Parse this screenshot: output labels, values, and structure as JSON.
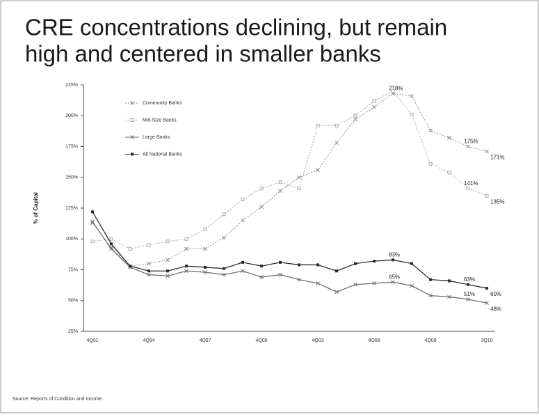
{
  "chart_data": {
    "type": "line",
    "title": "CRE concentrations declining, but remain high and centered in smaller banks",
    "y_label": "% of Capital",
    "source": "Source: Reports of Condition and Income.",
    "categories": [
      "4Q91",
      null,
      null,
      "4Q94",
      null,
      null,
      "4Q97",
      null,
      null,
      "4Q00",
      null,
      null,
      "4Q03",
      null,
      null,
      "4Q06",
      null,
      null,
      "4Q09",
      null,
      null,
      "3Q10"
    ],
    "ylim": [
      25,
      225
    ],
    "yticks": [
      {
        "value": 25,
        "label": "25%"
      },
      {
        "value": 50,
        "label": "50%"
      },
      {
        "value": 75,
        "label": "75%"
      },
      {
        "value": 100,
        "label": "100%"
      },
      {
        "value": 125,
        "label": "125%"
      },
      {
        "value": 150,
        "label": "150%"
      },
      {
        "value": 175,
        "label": "175%"
      },
      {
        "value": 200,
        "label": "200%"
      },
      {
        "value": 225,
        "label": "225%"
      }
    ],
    "grid": false,
    "series": [
      {
        "name": "Community Banks",
        "color": "#8a8a8a",
        "dash": true,
        "marker": "x",
        "values": [
          113,
          93,
          78,
          80,
          83,
          92,
          92,
          101,
          115,
          126,
          139,
          150,
          156,
          178,
          197,
          207,
          218,
          216,
          188,
          182,
          175,
          171
        ],
        "value_labels": [
          null,
          null,
          null,
          null,
          null,
          null,
          null,
          null,
          null,
          null,
          null,
          null,
          null,
          null,
          null,
          null,
          "218%",
          null,
          null,
          null,
          "175%",
          "171%"
        ]
      },
      {
        "name": "Mid-Size Banks",
        "color": "#a8a8a8",
        "dash": true,
        "marker": "square-open",
        "values": [
          98,
          100,
          92,
          95,
          98,
          100,
          108,
          120,
          132,
          141,
          146,
          141,
          192,
          192,
          200,
          212,
          220,
          201,
          161,
          154,
          141,
          135
        ],
        "value_labels": [
          null,
          null,
          null,
          null,
          null,
          null,
          null,
          null,
          null,
          null,
          null,
          null,
          null,
          null,
          null,
          null,
          null,
          null,
          null,
          null,
          "141%",
          "135%"
        ]
      },
      {
        "name": "Large Banks",
        "color": "#707070",
        "dash": false,
        "marker": "x",
        "values": [
          114,
          92,
          77,
          71,
          70,
          74,
          73,
          71,
          74,
          69,
          71,
          67,
          64,
          57,
          63,
          64,
          65,
          62,
          54,
          53,
          51,
          48
        ],
        "value_labels": [
          null,
          null,
          null,
          null,
          null,
          null,
          null,
          null,
          null,
          null,
          null,
          null,
          null,
          null,
          null,
          null,
          "65%",
          null,
          null,
          null,
          "51%",
          "48%"
        ]
      },
      {
        "name": "All National Banks",
        "color": "#2e2e2e",
        "dash": false,
        "marker": "square",
        "values": [
          122,
          96,
          78,
          74,
          74,
          78,
          77,
          76,
          81,
          78,
          81,
          79,
          79,
          74,
          80,
          82,
          83,
          80,
          67,
          66,
          63,
          60
        ],
        "value_labels": [
          null,
          null,
          null,
          null,
          null,
          null,
          null,
          null,
          null,
          null,
          null,
          null,
          null,
          null,
          null,
          null,
          "83%",
          null,
          null,
          null,
          "63%",
          "60%"
        ]
      }
    ]
  }
}
